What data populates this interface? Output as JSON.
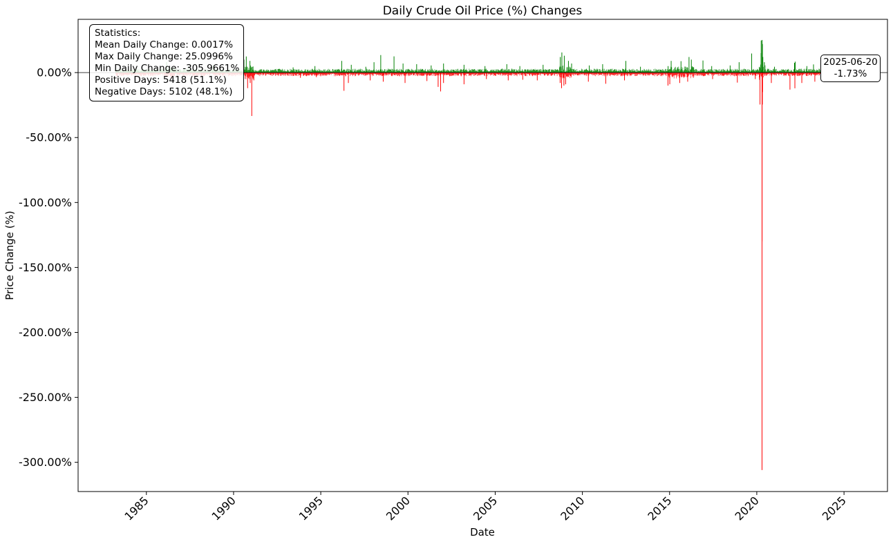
{
  "chart_data": {
    "type": "bar",
    "title": "Daily Crude Oil Price (%) Changes",
    "xlabel": "Date",
    "ylabel": "Price Change (%)",
    "xlim": [
      "1981-02-01",
      "2027-06-30"
    ],
    "ylim": [
      -322.5,
      41.0
    ],
    "x_ticks": [
      "1985",
      "1990",
      "1995",
      "2000",
      "2005",
      "2010",
      "2015",
      "2020",
      "2025"
    ],
    "y_ticks": [
      0,
      -50,
      -100,
      -150,
      -200,
      -250,
      -300
    ],
    "y_tick_labels": [
      "0.00%",
      "-50.00%",
      "-100.00%",
      "-150.00%",
      "-200.00%",
      "-250.00%",
      "-300.00%"
    ],
    "grid": false,
    "colors": {
      "positive": "#008000",
      "negative": "#ff0000",
      "zero_line": "#000000"
    },
    "series": [
      {
        "name": "Positive",
        "values": [
          [
            "1983-04-01",
            3.5
          ],
          [
            "1984-06-01",
            4.0
          ],
          [
            "1986-03-01",
            8.0
          ],
          [
            "1987-06-01",
            5.0
          ],
          [
            "1988-11-01",
            6.0
          ],
          [
            "1990-08-06",
            10.0
          ],
          [
            "1990-09-24",
            12.4
          ],
          [
            "1990-12-10",
            9.0
          ],
          [
            "1991-01-18",
            4.5
          ],
          [
            "1993-06-01",
            4.0
          ],
          [
            "1994-09-01",
            5.0
          ],
          [
            "1996-03-15",
            9.0
          ],
          [
            "1996-10-01",
            6.0
          ],
          [
            "1997-08-01",
            4.5
          ],
          [
            "1998-01-20",
            8.0
          ],
          [
            "1998-06-10",
            13.5
          ],
          [
            "1999-03-15",
            12.5
          ],
          [
            "1999-09-20",
            7.0
          ],
          [
            "2000-07-01",
            6.5
          ],
          [
            "2001-05-01",
            5.5
          ],
          [
            "2002-01-15",
            7.0
          ],
          [
            "2003-03-20",
            6.0
          ],
          [
            "2004-06-01",
            5.0
          ],
          [
            "2005-09-01",
            6.5
          ],
          [
            "2006-06-01",
            5.0
          ],
          [
            "2007-10-01",
            6.0
          ],
          [
            "2008-09-25",
            12.0
          ],
          [
            "2008-10-28",
            15.5
          ],
          [
            "2008-12-18",
            13.0
          ],
          [
            "2009-03-15",
            9.0
          ],
          [
            "2009-05-20",
            7.0
          ],
          [
            "2010-05-25",
            5.5
          ],
          [
            "2011-03-01",
            6.5
          ],
          [
            "2012-06-29",
            9.0
          ],
          [
            "2013-05-01",
            4.5
          ],
          [
            "2014-12-01",
            5.0
          ],
          [
            "2015-02-03",
            9.0
          ],
          [
            "2015-08-28",
            8.8
          ],
          [
            "2016-02-12",
            12.0
          ],
          [
            "2016-04-01",
            10.0
          ],
          [
            "2016-11-30",
            9.3
          ],
          [
            "2017-06-01",
            5.0
          ],
          [
            "2018-06-22",
            5.5
          ],
          [
            "2018-12-27",
            8.0
          ],
          [
            "2019-09-16",
            14.7
          ],
          [
            "2020-03-31",
            15.0
          ],
          [
            "2020-04-02",
            24.7
          ],
          [
            "2020-04-22",
            25.1
          ],
          [
            "2020-04-29",
            22.0
          ],
          [
            "2020-05-07",
            12.0
          ],
          [
            "2020-06-08",
            8.0
          ],
          [
            "2021-01-06",
            4.5
          ],
          [
            "2022-03-01",
            7.5
          ],
          [
            "2022-03-16",
            8.4
          ],
          [
            "2022-11-15",
            5.0
          ],
          [
            "2023-04-03",
            6.3
          ],
          [
            "2024-08-01",
            4.0
          ],
          [
            "2025-06-13",
            4.9
          ]
        ]
      },
      {
        "name": "Negative",
        "values": [
          [
            "1983-09-01",
            -2.0
          ],
          [
            "1985-04-01",
            -2.5
          ],
          [
            "1986-06-01",
            -4.0
          ],
          [
            "1988-03-01",
            -3.0
          ],
          [
            "1990-10-22",
            -12.0
          ],
          [
            "1990-12-15",
            -8.0
          ],
          [
            "1991-01-17",
            -33.4
          ],
          [
            "1991-03-01",
            -6.0
          ],
          [
            "1993-11-01",
            -4.0
          ],
          [
            "1994-10-01",
            -3.5
          ],
          [
            "1996-05-01",
            -14.0
          ],
          [
            "1996-08-01",
            -8.0
          ],
          [
            "1997-11-01",
            -6.0
          ],
          [
            "1998-08-01",
            -7.0
          ],
          [
            "1999-11-01",
            -8.0
          ],
          [
            "2001-02-01",
            -6.5
          ],
          [
            "2001-09-24",
            -11.0
          ],
          [
            "2001-11-15",
            -14.5
          ],
          [
            "2002-01-15",
            -8.0
          ],
          [
            "2003-03-20",
            -9.0
          ],
          [
            "2004-07-01",
            -5.0
          ],
          [
            "2005-10-01",
            -6.0
          ],
          [
            "2006-08-01",
            -5.5
          ],
          [
            "2007-06-01",
            -6.0
          ],
          [
            "2008-09-22",
            -8.0
          ],
          [
            "2008-10-22",
            -12.0
          ],
          [
            "2008-12-10",
            -10.0
          ],
          [
            "2009-01-15",
            -9.0
          ],
          [
            "2010-05-06",
            -7.0
          ],
          [
            "2011-05-05",
            -8.6
          ],
          [
            "2012-06-01",
            -6.0
          ],
          [
            "2014-11-28",
            -10.0
          ],
          [
            "2015-01-05",
            -9.0
          ],
          [
            "2015-08-01",
            -8.0
          ],
          [
            "2016-01-15",
            -7.0
          ],
          [
            "2017-06-20",
            -5.0
          ],
          [
            "2018-11-20",
            -7.7
          ],
          [
            "2019-12-01",
            -5.0
          ],
          [
            "2020-03-09",
            -24.6
          ],
          [
            "2020-04-20",
            -305.9661
          ],
          [
            "2020-04-21",
            -130.0
          ],
          [
            "2020-04-27",
            -24.6
          ],
          [
            "2020-05-01",
            -15.0
          ],
          [
            "2020-11-01",
            -8.0
          ],
          [
            "2021-11-26",
            -13.1
          ],
          [
            "2022-03-09",
            -12.1
          ],
          [
            "2022-08-01",
            -8.0
          ],
          [
            "2023-05-01",
            -7.0
          ],
          [
            "2024-10-01",
            -5.5
          ],
          [
            "2025-03-01",
            -4.0
          ],
          [
            "2025-06-20",
            -1.73
          ]
        ]
      }
    ],
    "statistics": {
      "title": "Statistics:",
      "lines": [
        "Mean Daily Change: 0.0017%",
        "Max Daily Change: 25.0996%",
        "Min Daily Change: -305.9661%",
        "Positive Days: 5418 (51.1%)",
        "Negative Days: 5102 (48.1%)"
      ]
    },
    "last_point": {
      "date": "2025-06-20",
      "value": -1.73,
      "label": "-1.73%"
    }
  }
}
